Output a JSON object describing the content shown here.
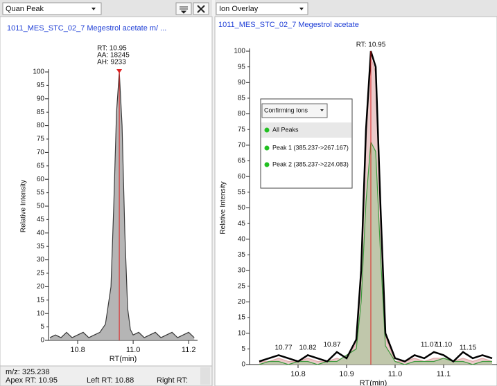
{
  "left_panel": {
    "dropdown": "Quan Peak",
    "compound": "1011_MES_STC_02_7  Megestrol acetate  m/ ...",
    "chart": {
      "type": "line",
      "ylabel": "Relative Intensity",
      "xlabel": "RT(min)",
      "peak_annotation": [
        "RT: 10.95",
        "AA: 18245",
        "AH: 9233"
      ],
      "apex_rt": 10.95,
      "xlim": [
        10.695,
        11.232
      ],
      "ylim": [
        0,
        100
      ],
      "xticks": [
        10.8,
        {
          "value": 11,
          "label": "11.0"
        },
        11.2
      ],
      "yticks": [
        0,
        5,
        10,
        15,
        20,
        25,
        30,
        35,
        40,
        45,
        50,
        55,
        60,
        65,
        70,
        75,
        80,
        85,
        90,
        95,
        100
      ],
      "x": [
        10.7,
        10.72,
        10.74,
        10.76,
        10.78,
        10.8,
        10.82,
        10.84,
        10.86,
        10.88,
        10.9,
        10.92,
        10.93,
        10.94,
        10.95,
        10.96,
        10.97,
        10.98,
        10.99,
        11.0,
        11.02,
        11.04,
        11.06,
        11.08,
        11.1,
        11.12,
        11.14,
        11.16,
        11.18,
        11.2,
        11.22
      ],
      "series": [
        {
          "color": "#3a3a3a",
          "fill": "#a8a8a8",
          "values": [
            1,
            2,
            1,
            3,
            1,
            2,
            3,
            1,
            2,
            3,
            6,
            20,
            50,
            85,
            100,
            80,
            40,
            12,
            4,
            2,
            3,
            1,
            2,
            3,
            1,
            2,
            3,
            1,
            2,
            3,
            1
          ]
        }
      ]
    },
    "status": [
      "m/z: 325.238",
      "Apex RT: 10.95",
      "Left RT: 10.88",
      "Right RT:"
    ]
  },
  "right_panel": {
    "dropdown": "Ion Overlay",
    "compound": "1011_MES_STC_02_7  Megestrol acetate",
    "legend": {
      "dropdown": "Confirming Ions",
      "items": [
        "All Peaks",
        "Peak 1 (385.237->267.167)",
        "Peak 2 (385.237->224.083)"
      ]
    },
    "chart": {
      "type": "line",
      "ylabel": "Relative Intensity",
      "xlabel": "RT(min)",
      "apex_label": "RT: 10.95",
      "apex_rt": 10.95,
      "xlim": [
        10.7,
        11.21
      ],
      "ylim": [
        0,
        100
      ],
      "xticks": [
        10.8,
        10.9,
        {
          "value": 11,
          "label": "11.0"
        },
        11.1
      ],
      "yticks": [
        0,
        5,
        10,
        15,
        20,
        25,
        30,
        35,
        40,
        45,
        50,
        55,
        60,
        65,
        70,
        75,
        80,
        85,
        90,
        95,
        100
      ],
      "peak_labels": {
        "x": [
          10.77,
          10.82,
          10.87,
          11.07,
          11.1,
          11.15
        ],
        "value_labels": [
          "10.77",
          "10.82",
          "10.87",
          "11.07",
          "11.10",
          "11.15"
        ],
        "y": [
          4,
          4,
          5,
          5,
          5,
          4
        ]
      },
      "x": [
        10.72,
        10.74,
        10.76,
        10.78,
        10.8,
        10.82,
        10.84,
        10.86,
        10.88,
        10.9,
        10.92,
        10.93,
        10.94,
        10.95,
        10.96,
        10.97,
        10.98,
        11.0,
        11.02,
        11.04,
        11.06,
        11.08,
        11.1,
        11.12,
        11.14,
        11.16,
        11.18,
        11.2
      ],
      "series": [
        {
          "color": "#e0a8a8",
          "fill": "#e8c2c2",
          "values": [
            1,
            1,
            2,
            1,
            1,
            2,
            1,
            1,
            2,
            1,
            7,
            28,
            72,
            98,
            93,
            48,
            9,
            1,
            1,
            2,
            1,
            2,
            2,
            1,
            2,
            1,
            2,
            1
          ]
        },
        {
          "color": "#3c9a3c",
          "fill": "#b9c7a6",
          "values": [
            0,
            1,
            1,
            0,
            1,
            1,
            0,
            1,
            1,
            3,
            5,
            20,
            52,
            71,
            68,
            35,
            6,
            1,
            0,
            1,
            1,
            1,
            2,
            1,
            1,
            0,
            1,
            1
          ]
        },
        {
          "color": "#000000",
          "values": [
            1,
            2,
            3,
            2,
            1,
            3,
            2,
            1,
            4,
            2,
            8,
            30,
            75,
            100,
            95,
            50,
            10,
            2,
            1,
            3,
            2,
            4,
            3,
            1,
            4,
            2,
            3,
            2
          ]
        }
      ]
    }
  }
}
